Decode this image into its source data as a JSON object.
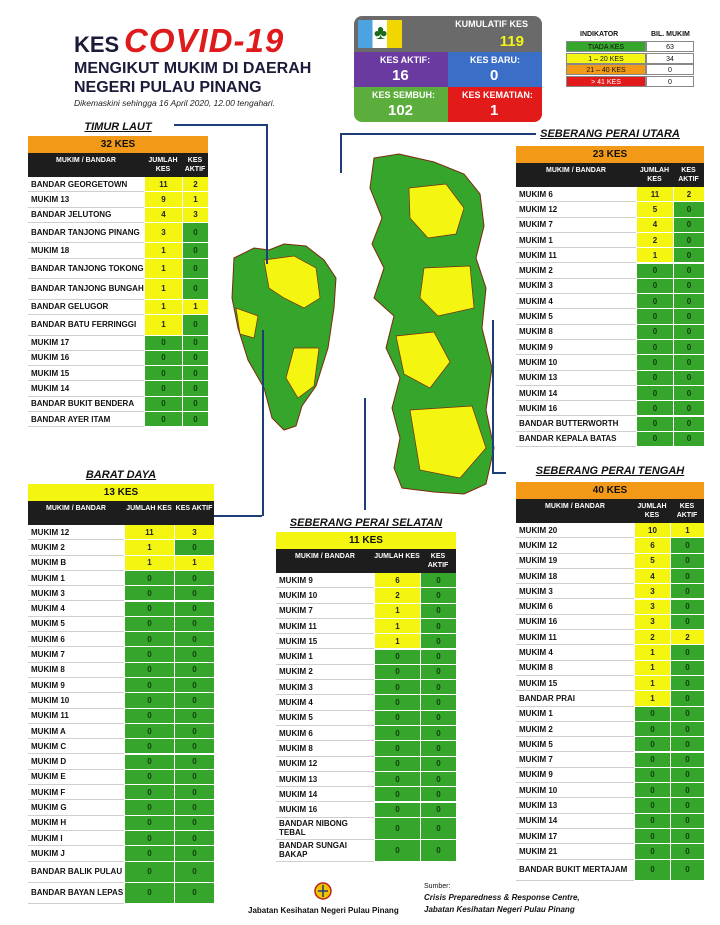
{
  "header": {
    "kes": "KES",
    "covid": "COVID-19",
    "line1": "MENGIKUT MUKIM DI DAERAH",
    "line2": "NEGERI PULAU PINANG",
    "date": "Dikemaskini sehingga 16 April 2020, 12.00 tengahari."
  },
  "summary": {
    "kumulatif_label": "KUMULATIF KES",
    "kumulatif": "119",
    "aktif_label": "KES AKTIF:",
    "aktif": "16",
    "baru_label": "KES BARU:",
    "baru": "0",
    "sembuh_label": "KES SEMBUH:",
    "sembuh": "102",
    "kematian_label": "KES KEMATIAN:",
    "kematian": "1"
  },
  "indicator": {
    "head_l": "INDIKATOR",
    "head_r": "BIL. MUKIM",
    "rows": [
      {
        "label": "TIADA KES",
        "count": "63",
        "color": "#36a52b"
      },
      {
        "label": "1 – 20 KES",
        "count": "34",
        "color": "#f5f512"
      },
      {
        "label": "21 – 40 KES",
        "count": "0",
        "color": "#f29a17"
      },
      {
        "label": "> 41 KES",
        "count": "0",
        "color": "#e21a1a"
      }
    ]
  },
  "col_headers": {
    "mukim": "MUKIM / BANDAR",
    "jumlah": "JUMLAH KES",
    "aktif": "KES AKTIF"
  },
  "districts": {
    "timur_laut": {
      "title": "TIMUR LAUT",
      "band": "32 KES",
      "band_color": "#f29a17",
      "rows": [
        {
          "n": "BANDAR GEORGETOWN",
          "j": "11",
          "a": "2",
          "h": 1
        },
        {
          "n": "MUKIM 13",
          "j": "9",
          "a": "1",
          "h": 1
        },
        {
          "n": "BANDAR JELUTONG",
          "j": "4",
          "a": "3",
          "h": 1
        },
        {
          "n": "BANDAR TANJONG PINANG",
          "j": "3",
          "a": "0",
          "h": 2
        },
        {
          "n": "MUKIM 18",
          "j": "1",
          "a": "0",
          "h": 1
        },
        {
          "n": "BANDAR TANJONG TOKONG",
          "j": "1",
          "a": "0",
          "h": 2
        },
        {
          "n": "BANDAR TANJONG BUNGAH",
          "j": "1",
          "a": "0",
          "h": 2
        },
        {
          "n": "BANDAR GELUGOR",
          "j": "1",
          "a": "1",
          "h": 1
        },
        {
          "n": "BANDAR BATU FERRINGGI",
          "j": "1",
          "a": "0",
          "h": 2
        },
        {
          "n": "MUKIM 17",
          "j": "0",
          "a": "0",
          "h": 1
        },
        {
          "n": "MUKIM 16",
          "j": "0",
          "a": "0",
          "h": 1
        },
        {
          "n": "MUKIM 15",
          "j": "0",
          "a": "0",
          "h": 1
        },
        {
          "n": "MUKIM 14",
          "j": "0",
          "a": "0",
          "h": 1
        },
        {
          "n": "BANDAR BUKIT BENDERA",
          "j": "0",
          "a": "0",
          "h": 1
        },
        {
          "n": "BANDAR AYER ITAM",
          "j": "0",
          "a": "0",
          "h": 1
        }
      ]
    },
    "barat_daya": {
      "title": "BARAT DAYA",
      "band": "13 KES",
      "band_color": "#f5f512",
      "rows": [
        {
          "n": "MUKIM 12",
          "j": "11",
          "a": "3",
          "h": 1
        },
        {
          "n": "MUKIM 2",
          "j": "1",
          "a": "0",
          "h": 1
        },
        {
          "n": "MUKIM B",
          "j": "1",
          "a": "1",
          "h": 1
        },
        {
          "n": "MUKIM 1",
          "j": "0",
          "a": "0",
          "h": 1
        },
        {
          "n": "MUKIM 3",
          "j": "0",
          "a": "0",
          "h": 1
        },
        {
          "n": "MUKIM 4",
          "j": "0",
          "a": "0",
          "h": 1
        },
        {
          "n": "MUKIM 5",
          "j": "0",
          "a": "0",
          "h": 1
        },
        {
          "n": "MUKIM 6",
          "j": "0",
          "a": "0",
          "h": 1
        },
        {
          "n": "MUKIM 7",
          "j": "0",
          "a": "0",
          "h": 1
        },
        {
          "n": "MUKIM 8",
          "j": "0",
          "a": "0",
          "h": 1
        },
        {
          "n": "MUKIM 9",
          "j": "0",
          "a": "0",
          "h": 1
        },
        {
          "n": "MUKIM 10",
          "j": "0",
          "a": "0",
          "h": 1
        },
        {
          "n": "MUKIM 11",
          "j": "0",
          "a": "0",
          "h": 1
        },
        {
          "n": "MUKIM A",
          "j": "0",
          "a": "0",
          "h": 1
        },
        {
          "n": "MUKIM C",
          "j": "0",
          "a": "0",
          "h": 1
        },
        {
          "n": "MUKIM D",
          "j": "0",
          "a": "0",
          "h": 1
        },
        {
          "n": "MUKIM E",
          "j": "0",
          "a": "0",
          "h": 1
        },
        {
          "n": "MUKIM F",
          "j": "0",
          "a": "0",
          "h": 1
        },
        {
          "n": "MUKIM G",
          "j": "0",
          "a": "0",
          "h": 1
        },
        {
          "n": "MUKIM H",
          "j": "0",
          "a": "0",
          "h": 1
        },
        {
          "n": "MUKIM I",
          "j": "0",
          "a": "0",
          "h": 1
        },
        {
          "n": "MUKIM J",
          "j": "0",
          "a": "0",
          "h": 1
        },
        {
          "n": "BANDAR BALIK PULAU",
          "j": "0",
          "a": "0",
          "h": 2
        },
        {
          "n": "BANDAR BAYAN LEPAS",
          "j": "0",
          "a": "0",
          "h": 2
        }
      ]
    },
    "spu": {
      "title": "SEBERANG PERAI UTARA",
      "band": "23 KES",
      "band_color": "#f29a17",
      "rows": [
        {
          "n": "MUKIM 6",
          "j": "11",
          "a": "2",
          "h": 1
        },
        {
          "n": "MUKIM 12",
          "j": "5",
          "a": "0",
          "h": 1
        },
        {
          "n": "MUKIM 7",
          "j": "4",
          "a": "0",
          "h": 1
        },
        {
          "n": "MUKIM 1",
          "j": "2",
          "a": "0",
          "h": 1
        },
        {
          "n": "MUKIM 11",
          "j": "1",
          "a": "0",
          "h": 1
        },
        {
          "n": "MUKIM 2",
          "j": "0",
          "a": "0",
          "h": 1
        },
        {
          "n": "MUKIM 3",
          "j": "0",
          "a": "0",
          "h": 1
        },
        {
          "n": "MUKIM 4",
          "j": "0",
          "a": "0",
          "h": 1
        },
        {
          "n": "MUKIM 5",
          "j": "0",
          "a": "0",
          "h": 1
        },
        {
          "n": "MUKIM 8",
          "j": "0",
          "a": "0",
          "h": 1
        },
        {
          "n": "MUKIM 9",
          "j": "0",
          "a": "0",
          "h": 1
        },
        {
          "n": "MUKIM 10",
          "j": "0",
          "a": "0",
          "h": 1
        },
        {
          "n": "MUKIM 13",
          "j": "0",
          "a": "0",
          "h": 1
        },
        {
          "n": "MUKIM 14",
          "j": "0",
          "a": "0",
          "h": 1
        },
        {
          "n": "MUKIM 16",
          "j": "0",
          "a": "0",
          "h": 1
        },
        {
          "n": "BANDAR BUTTERWORTH",
          "j": "0",
          "a": "0",
          "h": 1
        },
        {
          "n": "BANDAR KEPALA BATAS",
          "j": "0",
          "a": "0",
          "h": 1
        }
      ]
    },
    "sps": {
      "title": "SEBERANG PERAI SELATAN",
      "band": "11 KES",
      "band_color": "#f5f512",
      "rows": [
        {
          "n": "MUKIM 9",
          "j": "6",
          "a": "0",
          "h": 1
        },
        {
          "n": "MUKIM 10",
          "j": "2",
          "a": "0",
          "h": 1
        },
        {
          "n": "MUKIM 7",
          "j": "1",
          "a": "0",
          "h": 1
        },
        {
          "n": "MUKIM 11",
          "j": "1",
          "a": "0",
          "h": 1
        },
        {
          "n": "MUKIM 15",
          "j": "1",
          "a": "0",
          "h": 1
        },
        {
          "n": "MUKIM 1",
          "j": "0",
          "a": "0",
          "h": 1
        },
        {
          "n": "MUKIM 2",
          "j": "0",
          "a": "0",
          "h": 1
        },
        {
          "n": "MUKIM 3",
          "j": "0",
          "a": "0",
          "h": 1
        },
        {
          "n": "MUKIM 4",
          "j": "0",
          "a": "0",
          "h": 1
        },
        {
          "n": "MUKIM 5",
          "j": "0",
          "a": "0",
          "h": 1
        },
        {
          "n": "MUKIM 6",
          "j": "0",
          "a": "0",
          "h": 1
        },
        {
          "n": "MUKIM 8",
          "j": "0",
          "a": "0",
          "h": 1
        },
        {
          "n": "MUKIM 12",
          "j": "0",
          "a": "0",
          "h": 1
        },
        {
          "n": "MUKIM 13",
          "j": "0",
          "a": "0",
          "h": 1
        },
        {
          "n": "MUKIM 14",
          "j": "0",
          "a": "0",
          "h": 1
        },
        {
          "n": "MUKIM 16",
          "j": "0",
          "a": "0",
          "h": 1
        },
        {
          "n": "BANDAR NIBONG TEBAL",
          "j": "0",
          "a": "0",
          "h": 2
        },
        {
          "n": "BANDAR SUNGAI BAKAP",
          "j": "0",
          "a": "0",
          "h": 2
        }
      ]
    },
    "spt": {
      "title": "SEBERANG PERAI TENGAH",
      "band": "40 KES",
      "band_color": "#f29a17",
      "rows": [
        {
          "n": "MUKIM 20",
          "j": "10",
          "a": "1",
          "h": 1
        },
        {
          "n": "MUKIM 12",
          "j": "6",
          "a": "0",
          "h": 1
        },
        {
          "n": "MUKIM 19",
          "j": "5",
          "a": "0",
          "h": 1
        },
        {
          "n": "MUKIM 18",
          "j": "4",
          "a": "0",
          "h": 1
        },
        {
          "n": "MUKIM 3",
          "j": "3",
          "a": "0",
          "h": 1
        },
        {
          "n": "MUKIM 6",
          "j": "3",
          "a": "0",
          "h": 1
        },
        {
          "n": "MUKIM 16",
          "j": "3",
          "a": "0",
          "h": 1
        },
        {
          "n": "MUKIM 11",
          "j": "2",
          "a": "2",
          "h": 1
        },
        {
          "n": "MUKIM 4",
          "j": "1",
          "a": "0",
          "h": 1
        },
        {
          "n": "MUKIM 8",
          "j": "1",
          "a": "0",
          "h": 1
        },
        {
          "n": "MUKIM 15",
          "j": "1",
          "a": "0",
          "h": 1
        },
        {
          "n": "BANDAR PRAI",
          "j": "1",
          "a": "0",
          "h": 1
        },
        {
          "n": "MUKIM 1",
          "j": "0",
          "a": "0",
          "h": 1
        },
        {
          "n": "MUKIM 2",
          "j": "0",
          "a": "0",
          "h": 1
        },
        {
          "n": "MUKIM 5",
          "j": "0",
          "a": "0",
          "h": 1
        },
        {
          "n": "MUKIM 7",
          "j": "0",
          "a": "0",
          "h": 1
        },
        {
          "n": "MUKIM 9",
          "j": "0",
          "a": "0",
          "h": 1
        },
        {
          "n": "MUKIM 10",
          "j": "0",
          "a": "0",
          "h": 1
        },
        {
          "n": "MUKIM 13",
          "j": "0",
          "a": "0",
          "h": 1
        },
        {
          "n": "MUKIM 14",
          "j": "0",
          "a": "0",
          "h": 1
        },
        {
          "n": "MUKIM 17",
          "j": "0",
          "a": "0",
          "h": 1
        },
        {
          "n": "MUKIM 21",
          "j": "0",
          "a": "0",
          "h": 1
        },
        {
          "n": "BANDAR BUKIT MERTAJAM",
          "j": "0",
          "a": "0",
          "h": 2
        }
      ]
    }
  },
  "footer": {
    "dept": "Jabatan Kesihatan Negeri Pulau Pinang",
    "sumber": "Sumber:",
    "src1": "Crisis Preparedness & Response Centre,",
    "src2": "Jabatan Kesihatan Negeri Pulau Pinang"
  }
}
